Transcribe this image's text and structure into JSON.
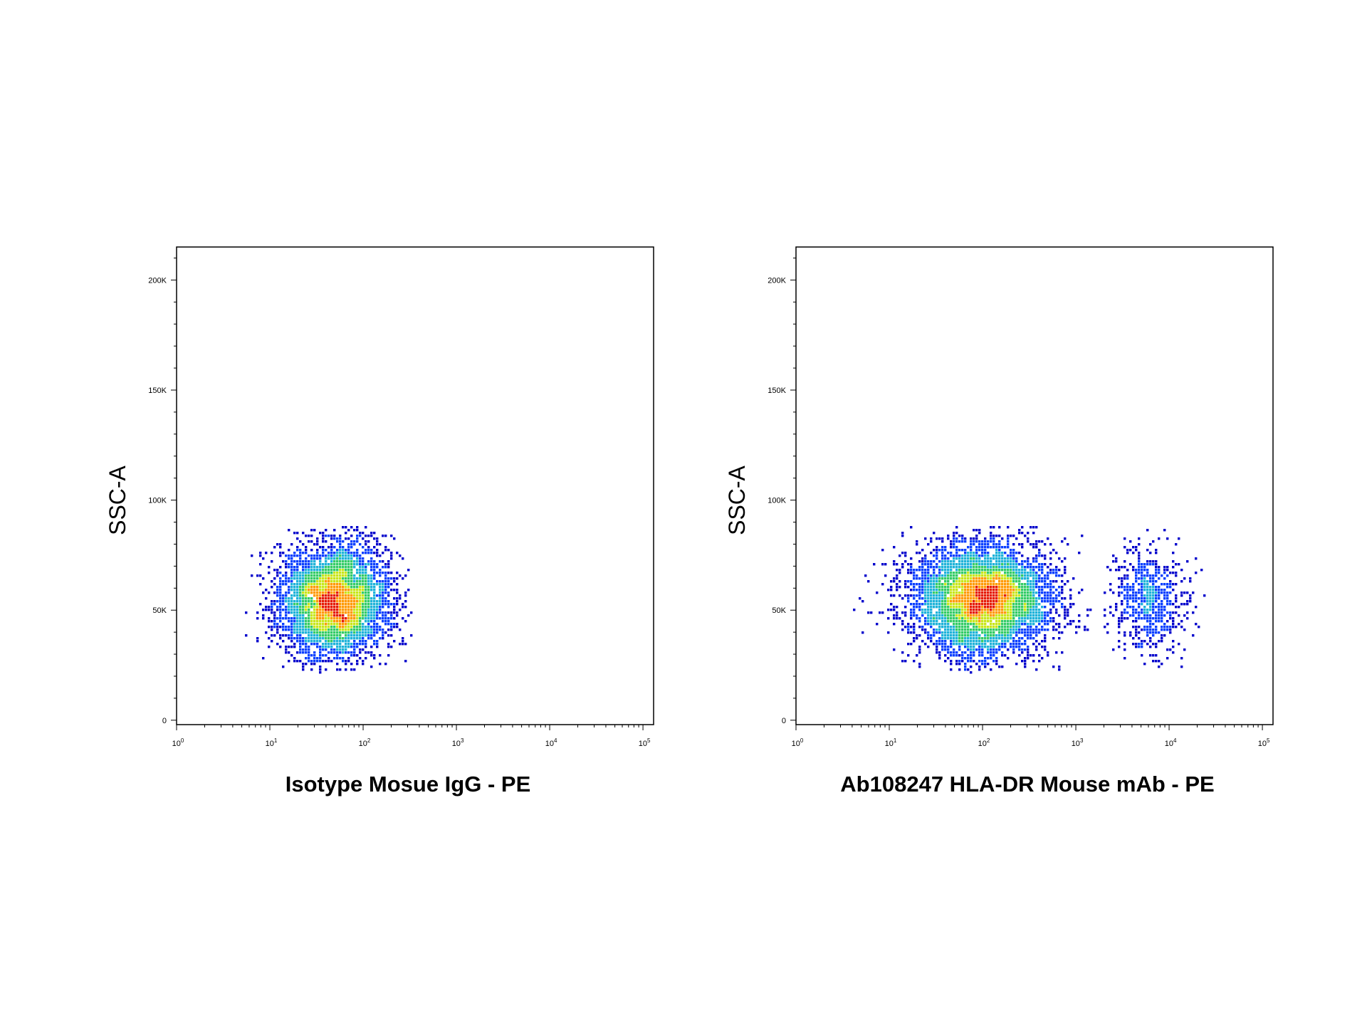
{
  "chart_data": [
    {
      "type": "scatter",
      "subtype": "flow-cytometry-density-dot-plot",
      "xlabel": "Isotype Mosue IgG - PE",
      "ylabel": "SSC-A",
      "xscale": "log",
      "xlim": [
        1,
        130000
      ],
      "ylim": [
        -2000,
        215000
      ],
      "x_ticks": [
        {
          "value": 1,
          "base": "10",
          "exp": "0"
        },
        {
          "value": 10,
          "base": "10",
          "exp": "1"
        },
        {
          "value": 100,
          "base": "10",
          "exp": "2"
        },
        {
          "value": 1000,
          "base": "10",
          "exp": "3"
        },
        {
          "value": 10000,
          "base": "10",
          "exp": "4"
        },
        {
          "value": 100000,
          "base": "10",
          "exp": "5"
        }
      ],
      "y_ticks": [
        {
          "value": 0,
          "label": "0"
        },
        {
          "value": 50000,
          "label": "50K"
        },
        {
          "value": 100000,
          "label": "100K"
        },
        {
          "value": 150000,
          "label": "150K"
        },
        {
          "value": 200000,
          "label": "200K"
        }
      ],
      "grid": false,
      "legend": "none",
      "density_colors": [
        "#0000cc",
        "#0a3fff",
        "#1fb3d9",
        "#33cc66",
        "#c8e619",
        "#ff9900",
        "#e61a00"
      ],
      "populations": [
        {
          "x_center": 50,
          "x_sd_decades": 0.3,
          "y_center": 54000,
          "y_sd": 13000,
          "x_range": [
            5,
            330
          ],
          "y_range": [
            22000,
            88000
          ],
          "count": 4200
        }
      ]
    },
    {
      "type": "scatter",
      "subtype": "flow-cytometry-density-dot-plot",
      "xlabel": "Ab108247 HLA-DR Mouse mAb - PE",
      "ylabel": "SSC-A",
      "xscale": "log",
      "xlim": [
        1,
        130000
      ],
      "ylim": [
        -2000,
        215000
      ],
      "x_ticks": [
        {
          "value": 1,
          "base": "10",
          "exp": "0"
        },
        {
          "value": 10,
          "base": "10",
          "exp": "1"
        },
        {
          "value": 100,
          "base": "10",
          "exp": "2"
        },
        {
          "value": 1000,
          "base": "10",
          "exp": "3"
        },
        {
          "value": 10000,
          "base": "10",
          "exp": "4"
        },
        {
          "value": 100000,
          "base": "10",
          "exp": "5"
        }
      ],
      "y_ticks": [
        {
          "value": 0,
          "label": "0"
        },
        {
          "value": 50000,
          "label": "50K"
        },
        {
          "value": 100000,
          "label": "100K"
        },
        {
          "value": 150000,
          "label": "150K"
        },
        {
          "value": 200000,
          "label": "200K"
        }
      ],
      "grid": false,
      "legend": "none",
      "density_colors": [
        "#0000cc",
        "#0a3fff",
        "#1fb3d9",
        "#33cc66",
        "#c8e619",
        "#ff9900",
        "#e61a00"
      ],
      "populations": [
        {
          "x_center": 100,
          "x_sd_decades": 0.38,
          "y_center": 55000,
          "y_sd": 13000,
          "x_range": [
            4,
            1500
          ],
          "y_range": [
            22000,
            88000
          ],
          "count": 5200
        },
        {
          "x_center": 6000,
          "x_sd_decades": 0.2,
          "y_center": 55000,
          "y_sd": 13000,
          "x_range": [
            2000,
            25000
          ],
          "y_range": [
            24000,
            88000
          ],
          "count": 700
        }
      ]
    }
  ]
}
